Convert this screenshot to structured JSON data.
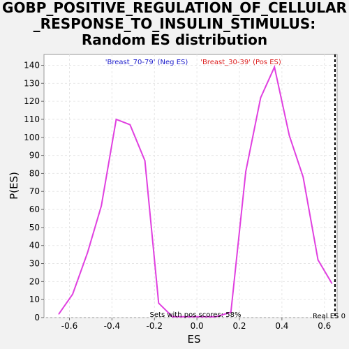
{
  "chart_data": {
    "type": "line",
    "title_lines": [
      "GOBP_POSITIVE_REGULATION_OF_CELLULAR",
      "_RESPONSE_TO_INSULIN_STIMULUS:",
      "Random ES distribution"
    ],
    "xlabel": "ES",
    "ylabel": "P(ES)",
    "xlim": [
      -0.72,
      0.66
    ],
    "ylim": [
      0,
      146
    ],
    "xticks": [
      -0.6,
      -0.4,
      -0.2,
      0.0,
      0.2,
      0.4,
      0.6
    ],
    "xtick_labels": [
      "-0.6",
      "-0.4",
      "-0.2",
      "0.0",
      "0.2",
      "0.4",
      "0.6"
    ],
    "yticks": [
      0,
      10,
      20,
      30,
      40,
      50,
      60,
      70,
      80,
      90,
      100,
      110,
      120,
      130,
      140
    ],
    "ytick_labels": [
      "0",
      "10",
      "20",
      "30",
      "40",
      "50",
      "60",
      "70",
      "80",
      "90",
      "100",
      "110",
      "120",
      "130",
      "140"
    ],
    "grid": true,
    "series": [
      {
        "color": "#e040e0",
        "x": [
          -0.65,
          -0.585,
          -0.515,
          -0.45,
          -0.38,
          -0.315,
          -0.245,
          -0.18,
          -0.115,
          -0.05,
          0.02,
          0.09,
          0.16,
          0.23,
          0.3,
          0.365,
          0.435,
          0.5,
          0.57,
          0.635
        ],
        "y": [
          2,
          13,
          36,
          62,
          110,
          107,
          87,
          8,
          0.5,
          0.5,
          0.5,
          0.5,
          3,
          81,
          122,
          139,
          101,
          78,
          32,
          19
        ]
      }
    ],
    "vline": {
      "x": 0.65,
      "label": "Real ES 0",
      "color": "#000000"
    },
    "annotations": {
      "neg": {
        "text": "'Breast_70-79' (Neg ES)",
        "color": "#2020cc"
      },
      "pos": {
        "text": "'Breast_30-39' (Pos ES)",
        "color": "#dd2222"
      },
      "bottom": {
        "text": "Sets with pos scores: 58%",
        "color": "#000000"
      }
    }
  }
}
